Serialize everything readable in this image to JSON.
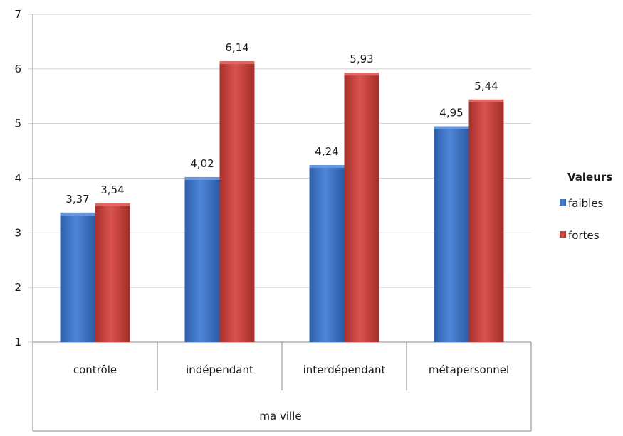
{
  "chart_data": {
    "type": "bar",
    "title": "",
    "xlabel": "",
    "ylabel": "",
    "ylim": [
      1,
      7
    ],
    "yticks": [
      1,
      2,
      3,
      4,
      5,
      6,
      7
    ],
    "grid": true,
    "categories": [
      "contrôle",
      "indépendant",
      "interdépendant",
      "métapersonnel"
    ],
    "group_label": "ma ville",
    "legend": {
      "title": "Valeurs",
      "position": "right"
    },
    "series": [
      {
        "name": "faibles",
        "color": "#3d72c4",
        "values": [
          3.37,
          4.02,
          4.24,
          4.95
        ],
        "labels": [
          "3,37",
          "4,02",
          "4,24",
          "4,95"
        ]
      },
      {
        "name": "fortes",
        "color": "#c93b37",
        "values": [
          3.54,
          6.14,
          5.93,
          5.44
        ],
        "labels": [
          "3,54",
          "6,14",
          "5,93",
          "5,44"
        ]
      }
    ]
  }
}
